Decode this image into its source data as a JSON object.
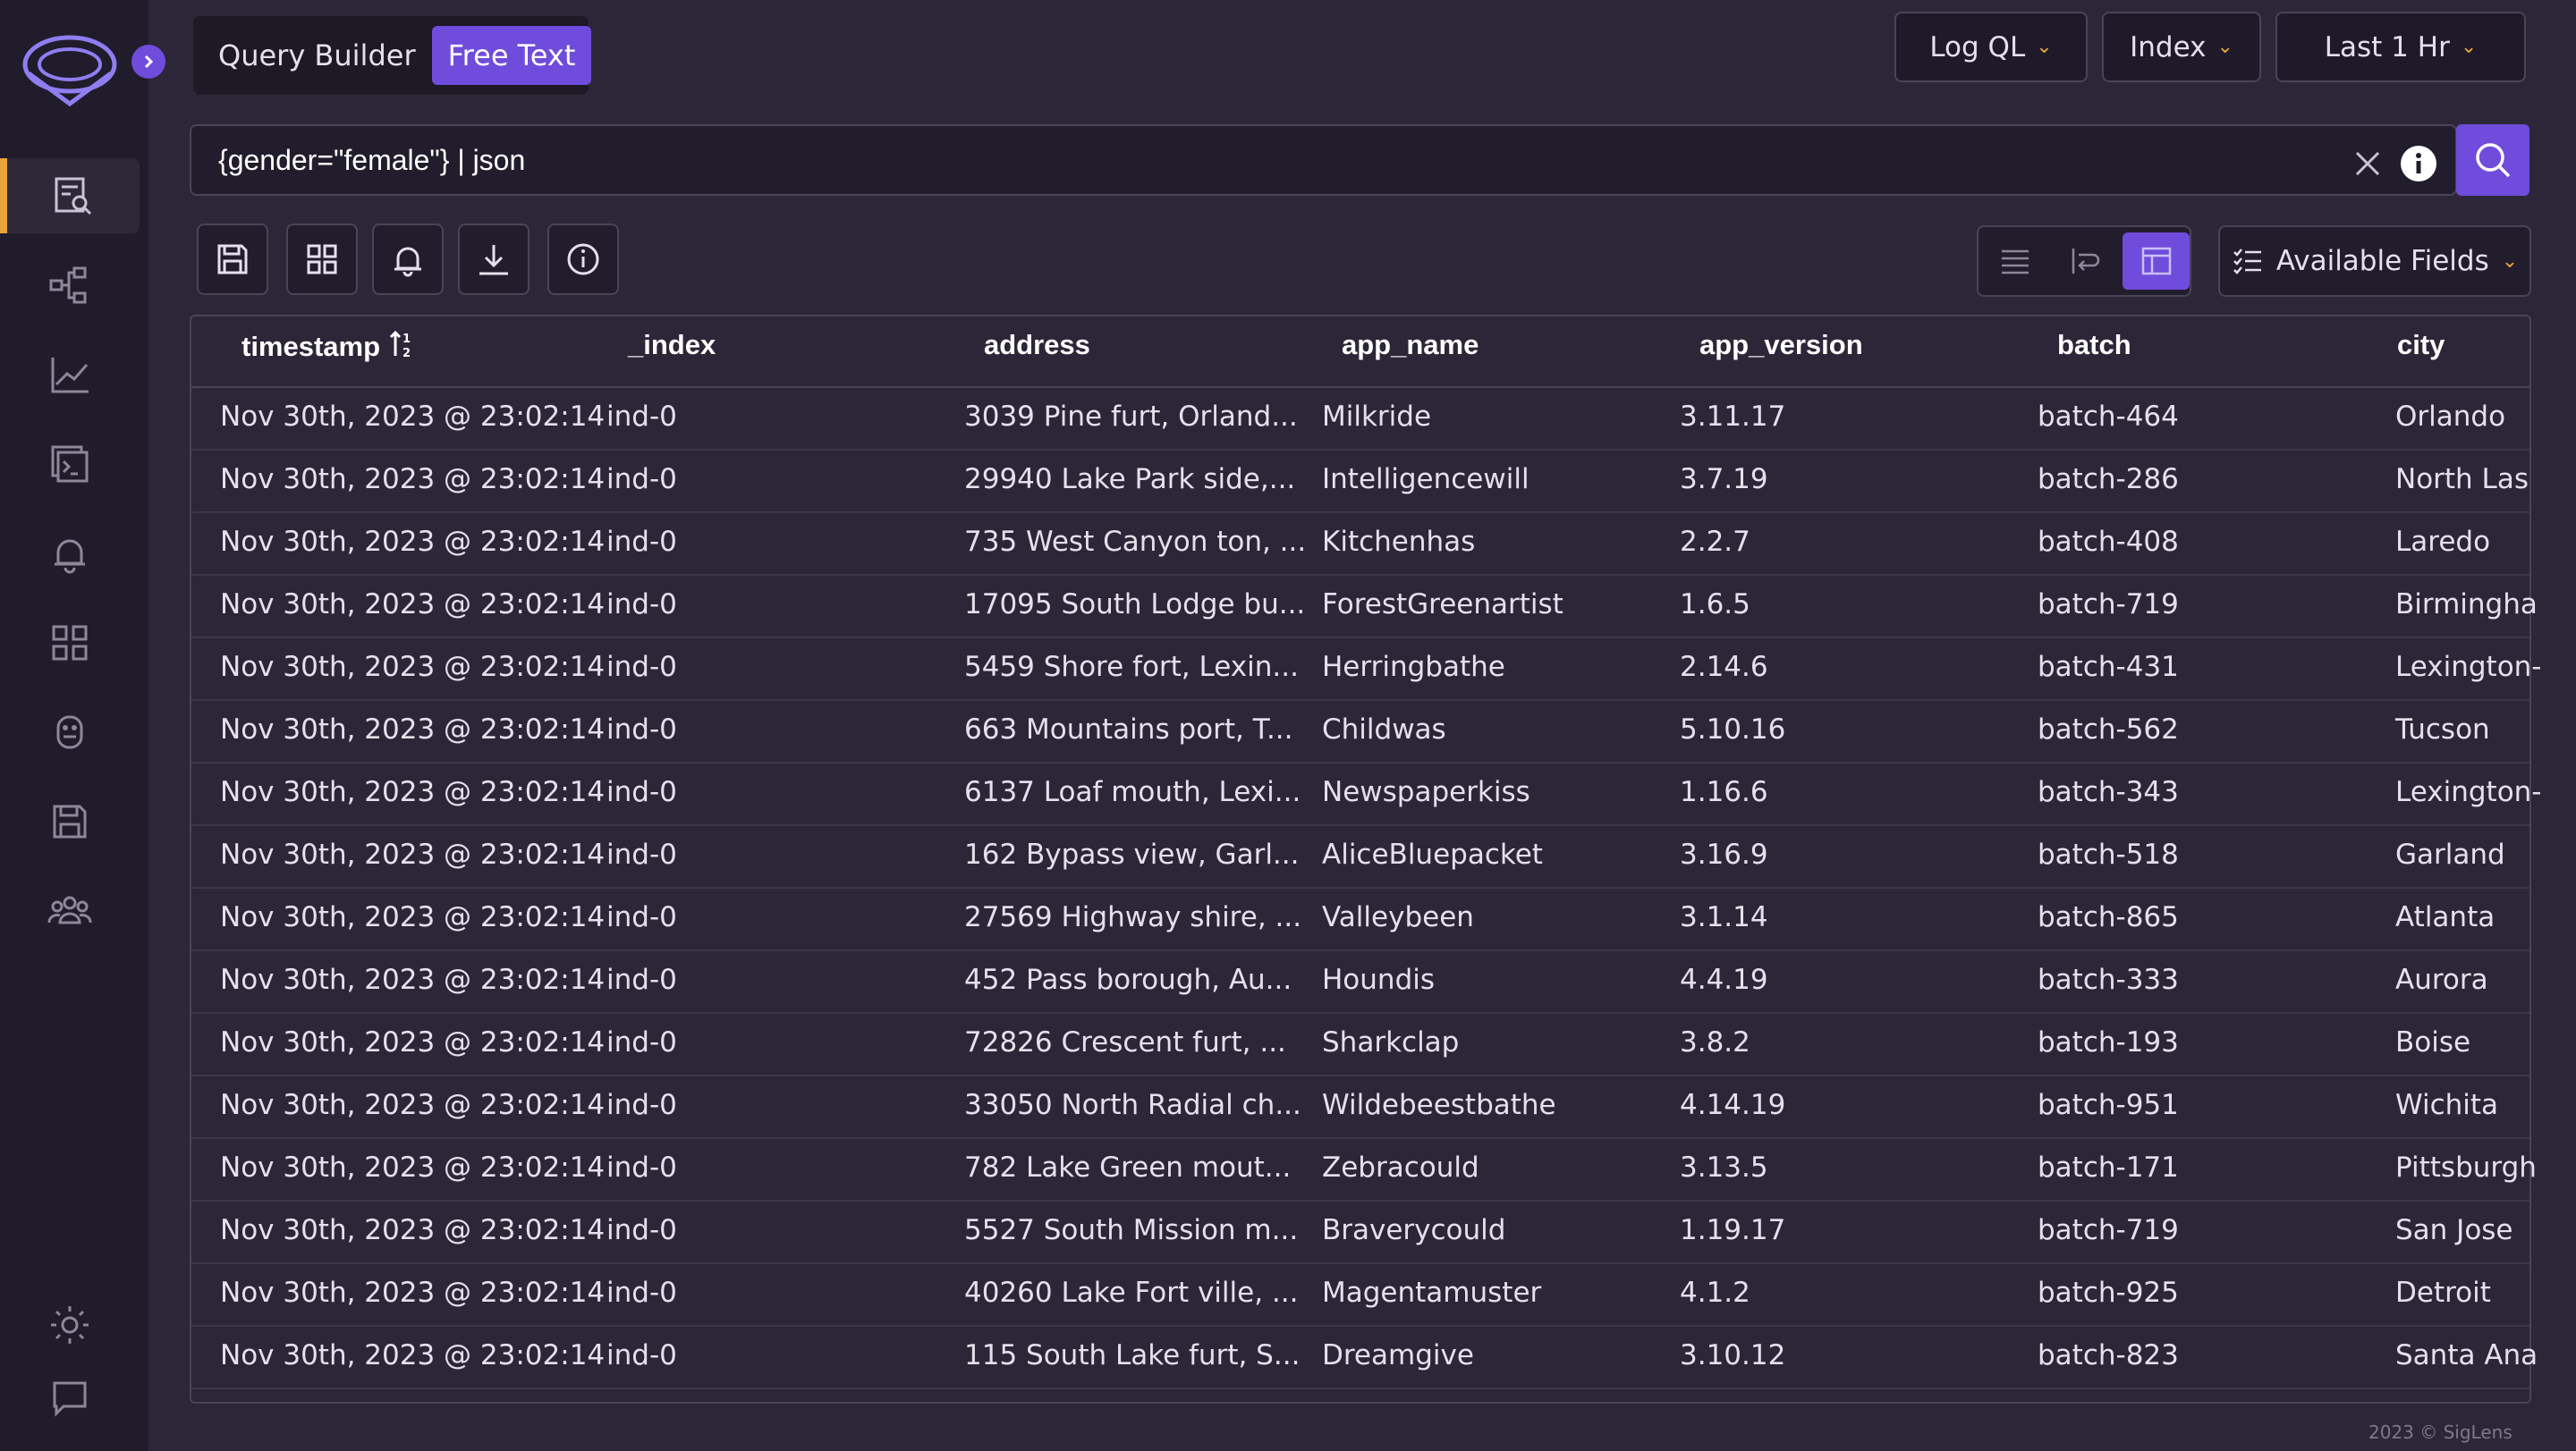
{
  "app": {
    "copyright": "2023 © SigLens"
  },
  "mode_toggle": {
    "query_builder": "Query Builder",
    "free_text": "Free Text"
  },
  "dropdowns": {
    "query_language": "Log QL",
    "index": "Index",
    "time_range": "Last 1 Hr"
  },
  "search": {
    "query": "{gender=\"female\"} | json"
  },
  "fields_button": {
    "label": "Available Fields"
  },
  "colors": {
    "accent": "#6f4cdb",
    "highlight": "#e8a33a",
    "background": "#2c2638",
    "sidebar": "#211c2b"
  },
  "table": {
    "columns": [
      "timestamp",
      "_index",
      "address",
      "app_name",
      "app_version",
      "batch",
      "city"
    ],
    "rows": [
      [
        "Nov 30th, 2023 @ 23:02:14",
        "ind-0",
        "3039 Pine furt, Orland...",
        "Milkride",
        "3.11.17",
        "batch-464",
        "Orlando"
      ],
      [
        "Nov 30th, 2023 @ 23:02:14",
        "ind-0",
        "29940 Lake Park side,...",
        "Intelligencewill",
        "3.7.19",
        "batch-286",
        "North Las"
      ],
      [
        "Nov 30th, 2023 @ 23:02:14",
        "ind-0",
        "735 West Canyon ton, ...",
        "Kitchenhas",
        "2.2.7",
        "batch-408",
        "Laredo"
      ],
      [
        "Nov 30th, 2023 @ 23:02:14",
        "ind-0",
        "17095 South Lodge bu...",
        "ForestGreenartist",
        "1.6.5",
        "batch-719",
        "Birmingha"
      ],
      [
        "Nov 30th, 2023 @ 23:02:14",
        "ind-0",
        "5459 Shore fort, Lexin...",
        "Herringbathe",
        "2.14.6",
        "batch-431",
        "Lexington-"
      ],
      [
        "Nov 30th, 2023 @ 23:02:14",
        "ind-0",
        "663 Mountains port, T...",
        "Childwas",
        "5.10.16",
        "batch-562",
        "Tucson"
      ],
      [
        "Nov 30th, 2023 @ 23:02:14",
        "ind-0",
        "6137 Loaf mouth, Lexi...",
        "Newspaperkiss",
        "1.16.6",
        "batch-343",
        "Lexington-"
      ],
      [
        "Nov 30th, 2023 @ 23:02:14",
        "ind-0",
        "162 Bypass view, Garl...",
        "AliceBluepacket",
        "3.16.9",
        "batch-518",
        "Garland"
      ],
      [
        "Nov 30th, 2023 @ 23:02:14",
        "ind-0",
        "27569 Highway shire, ...",
        "Valleybeen",
        "3.1.14",
        "batch-865",
        "Atlanta"
      ],
      [
        "Nov 30th, 2023 @ 23:02:14",
        "ind-0",
        "452 Pass borough, Au...",
        "Houndis",
        "4.4.19",
        "batch-333",
        "Aurora"
      ],
      [
        "Nov 30th, 2023 @ 23:02:14",
        "ind-0",
        "72826 Crescent furt, ...",
        "Sharkclap",
        "3.8.2",
        "batch-193",
        "Boise"
      ],
      [
        "Nov 30th, 2023 @ 23:02:14",
        "ind-0",
        "33050 North Radial ch...",
        "Wildebeestbathe",
        "4.14.19",
        "batch-951",
        "Wichita"
      ],
      [
        "Nov 30th, 2023 @ 23:02:14",
        "ind-0",
        "782 Lake Green mout...",
        "Zebracould",
        "3.13.5",
        "batch-171",
        "Pittsburgh"
      ],
      [
        "Nov 30th, 2023 @ 23:02:14",
        "ind-0",
        "5527 South Mission m...",
        "Braverycould",
        "1.19.17",
        "batch-719",
        "San Jose"
      ],
      [
        "Nov 30th, 2023 @ 23:02:14",
        "ind-0",
        "40260 Lake Fort ville, ...",
        "Magentamuster",
        "4.1.2",
        "batch-925",
        "Detroit"
      ],
      [
        "Nov 30th, 2023 @ 23:02:14",
        "ind-0",
        "115 South Lake furt, S...",
        "Dreamgive",
        "3.10.12",
        "batch-823",
        "Santa Ana"
      ]
    ]
  }
}
